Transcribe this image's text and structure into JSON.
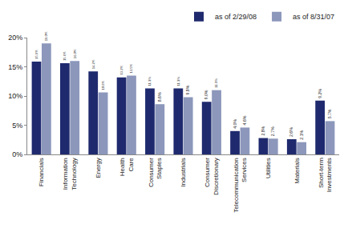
{
  "chart_data": {
    "type": "bar",
    "categories": [
      "Financials",
      "Information Technology",
      "Energy",
      "Health Care",
      "Consumer Staples",
      "Industrials",
      "Consumer Discretionary",
      "Telecommunication Services",
      "Utilities",
      "Materials",
      "Short-term Investments"
    ],
    "series": [
      {
        "name": "as of 2/29/08",
        "color": "#1f2a6e",
        "values": [
          15.9,
          15.6,
          14.2,
          13.2,
          11.3,
          11.3,
          9.0,
          4.0,
          2.8,
          2.6,
          9.2
        ],
        "value_labels": [
          "15.9%",
          "15.6%",
          "14.2%",
          "13.2%",
          "11.3%",
          "11.3%",
          "9.0%",
          "4.0%",
          "2.8%",
          "2.6%",
          "9.2%"
        ]
      },
      {
        "name": "as of 8/31/07",
        "color": "#8c97bb",
        "values": [
          19.0,
          16.0,
          10.6,
          13.5,
          8.6,
          9.8,
          11.0,
          4.6,
          2.7,
          2.1,
          5.7
        ],
        "value_labels": [
          "19.0%",
          "16.0%",
          "10.6%",
          "13.5%",
          "8.6%",
          "9.8%",
          "11.0%",
          "4.6%",
          "2.7%",
          "2.1%",
          "5.7%"
        ]
      }
    ],
    "ylim": [
      0,
      20
    ],
    "yticks": [
      {
        "value": 0,
        "label": "0%"
      },
      {
        "value": 5,
        "label": "5%"
      },
      {
        "value": 10,
        "label": "10%"
      },
      {
        "value": 15,
        "label": "15%"
      },
      {
        "value": 20,
        "label": "20%"
      }
    ],
    "grid": false,
    "legend": "top-right",
    "data_labels": true
  }
}
